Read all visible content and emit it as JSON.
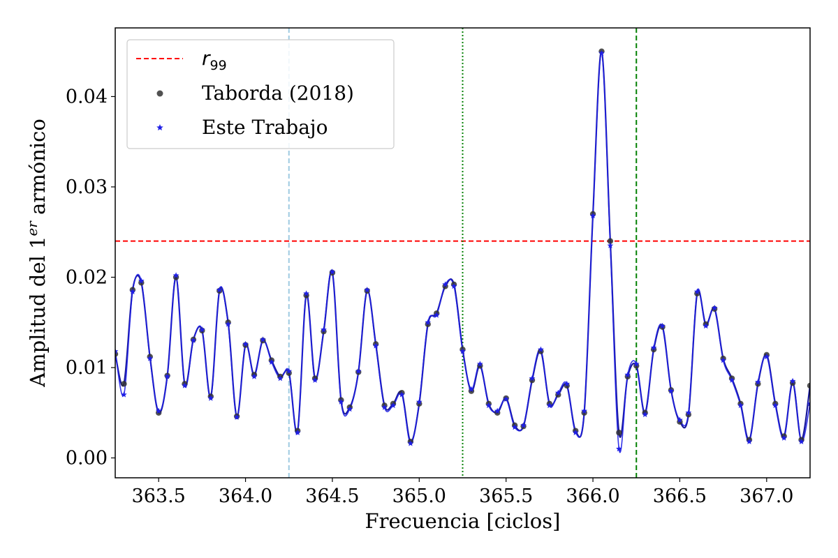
{
  "chart_data": {
    "type": "line",
    "xlabel": "Frecuencia [ciclos]",
    "ylabel_parts": [
      "Amplitud del 1",
      "er",
      " armónico"
    ],
    "xlim": [
      363.25,
      367.25
    ],
    "ylim": [
      -0.0022,
      0.0476
    ],
    "xticks": [
      363.5,
      364.0,
      364.5,
      365.0,
      365.5,
      366.0,
      366.5,
      367.0
    ],
    "xtick_labels": [
      "363.5",
      "364.0",
      "364.5",
      "365.0",
      "365.5",
      "366.0",
      "366.5",
      "367.0"
    ],
    "yticks": [
      0.0,
      0.01,
      0.02,
      0.03,
      0.04
    ],
    "ytick_labels": [
      "0.00",
      "0.01",
      "0.02",
      "0.03",
      "0.04"
    ],
    "grid": false,
    "legend": {
      "placement": "upper-left",
      "entries": [
        {
          "label_base": "r",
          "label_sub": "99",
          "marker": "dashed-line",
          "color": "#ff0000"
        },
        {
          "label": "Taborda (2018)",
          "marker": "circle",
          "color": "#333333"
        },
        {
          "label": "Este Trabajo",
          "marker": "star",
          "color": "#1f1fe6"
        }
      ]
    },
    "threshold": {
      "name": "r99",
      "y": 0.024,
      "color": "#ff0000",
      "style": "dashed"
    },
    "vertical_lines": [
      {
        "x": 364.25,
        "color": "#9ecae1",
        "style": "dashed"
      },
      {
        "x": 365.25,
        "color": "#008000",
        "style": "dotted"
      },
      {
        "x": 366.25,
        "color": "#008000",
        "style": "dashed"
      }
    ],
    "series": [
      {
        "name": "Taborda (2018)",
        "marker": "circle",
        "color": "#333333",
        "line_color": "#1a1a99",
        "x": [
          363.25,
          363.3,
          363.35,
          363.4,
          363.45,
          363.5,
          363.55,
          363.6,
          363.65,
          363.7,
          363.75,
          363.8,
          363.85,
          363.9,
          363.95,
          364.0,
          364.05,
          364.1,
          364.15,
          364.2,
          364.25,
          364.3,
          364.35,
          364.4,
          364.45,
          364.5,
          364.55,
          364.6,
          364.65,
          364.7,
          364.75,
          364.8,
          364.85,
          364.9,
          364.95,
          365.0,
          365.05,
          365.1,
          365.15,
          365.2,
          365.25,
          365.3,
          365.35,
          365.4,
          365.45,
          365.5,
          365.55,
          365.6,
          365.65,
          365.7,
          365.75,
          365.8,
          365.85,
          365.9,
          365.95,
          366.0,
          366.05,
          366.1,
          366.15,
          366.2,
          366.25,
          366.3,
          366.35,
          366.4,
          366.45,
          366.5,
          366.55,
          366.6,
          366.65,
          366.7,
          366.75,
          366.8,
          366.85,
          366.9,
          366.95,
          367.0,
          367.05,
          367.1,
          367.15,
          367.2,
          367.25
        ],
        "y": [
          0.0115,
          0.0082,
          0.0186,
          0.0194,
          0.0112,
          0.005,
          0.0091,
          0.02,
          0.0082,
          0.0131,
          0.0141,
          0.0068,
          0.0185,
          0.015,
          0.0046,
          0.0125,
          0.0092,
          0.013,
          0.0108,
          0.009,
          0.0094,
          0.003,
          0.018,
          0.0088,
          0.014,
          0.0205,
          0.0064,
          0.0056,
          0.0095,
          0.0185,
          0.0126,
          0.0058,
          0.006,
          0.0072,
          0.0018,
          0.006,
          0.0148,
          0.016,
          0.019,
          0.0192,
          0.012,
          0.0074,
          0.0102,
          0.006,
          0.005,
          0.0066,
          0.0036,
          0.0035,
          0.0086,
          0.0118,
          0.006,
          0.007,
          0.008,
          0.003,
          0.005,
          0.027,
          0.045,
          0.024,
          0.0028,
          0.009,
          0.0102,
          0.005,
          0.012,
          0.0145,
          0.0075,
          0.004,
          0.0048,
          0.0182,
          0.0148,
          0.0165,
          0.011,
          0.0088,
          0.006,
          0.002,
          0.0082,
          0.0114,
          0.006,
          0.0024,
          0.0083,
          0.002,
          0.008
        ]
      },
      {
        "name": "Este Trabajo",
        "marker": "star",
        "color": "#1f1fe6",
        "x": [
          363.25,
          363.3,
          363.35,
          363.4,
          363.45,
          363.5,
          363.55,
          363.6,
          363.65,
          363.7,
          363.75,
          363.8,
          363.85,
          363.9,
          363.95,
          364.0,
          364.05,
          364.1,
          364.15,
          364.2,
          364.25,
          364.3,
          364.35,
          364.4,
          364.45,
          364.5,
          364.55,
          364.6,
          364.65,
          364.7,
          364.75,
          364.8,
          364.85,
          364.9,
          364.95,
          365.0,
          365.05,
          365.1,
          365.15,
          365.2,
          365.25,
          365.3,
          365.35,
          365.4,
          365.45,
          365.5,
          365.55,
          365.6,
          365.65,
          365.7,
          365.75,
          365.8,
          365.85,
          365.9,
          365.95,
          366.0,
          366.05,
          366.1,
          366.15,
          366.2,
          366.25,
          366.3,
          366.35,
          366.4,
          366.45,
          366.5,
          366.55,
          366.6,
          366.65,
          366.7,
          366.75,
          366.8,
          366.85,
          366.9,
          366.95,
          367.0,
          367.05,
          367.1,
          367.15,
          367.2,
          367.25
        ],
        "y": [
          0.0118,
          0.007,
          0.0184,
          0.0196,
          0.011,
          0.0052,
          0.009,
          0.0202,
          0.008,
          0.013,
          0.0142,
          0.0066,
          0.0186,
          0.0148,
          0.0045,
          0.0126,
          0.009,
          0.0131,
          0.0106,
          0.0088,
          0.0096,
          0.0028,
          0.0182,
          0.0086,
          0.0142,
          0.0206,
          0.0062,
          0.0054,
          0.0096,
          0.0186,
          0.0124,
          0.0056,
          0.0058,
          0.007,
          0.0016,
          0.0062,
          0.015,
          0.0158,
          0.0192,
          0.019,
          0.0118,
          0.0076,
          0.0104,
          0.0058,
          0.0052,
          0.0065,
          0.0034,
          0.0036,
          0.0088,
          0.012,
          0.0058,
          0.0072,
          0.0082,
          0.0028,
          0.0052,
          0.0268,
          0.0448,
          0.0235,
          0.001,
          0.0092,
          0.0104,
          0.0048,
          0.0122,
          0.0146,
          0.0074,
          0.0042,
          0.005,
          0.0184,
          0.0146,
          0.0166,
          0.0108,
          0.0086,
          0.0058,
          0.0018,
          0.0084,
          0.0112,
          0.0058,
          0.0022,
          0.0085,
          0.0018,
          0.006
        ]
      }
    ]
  }
}
